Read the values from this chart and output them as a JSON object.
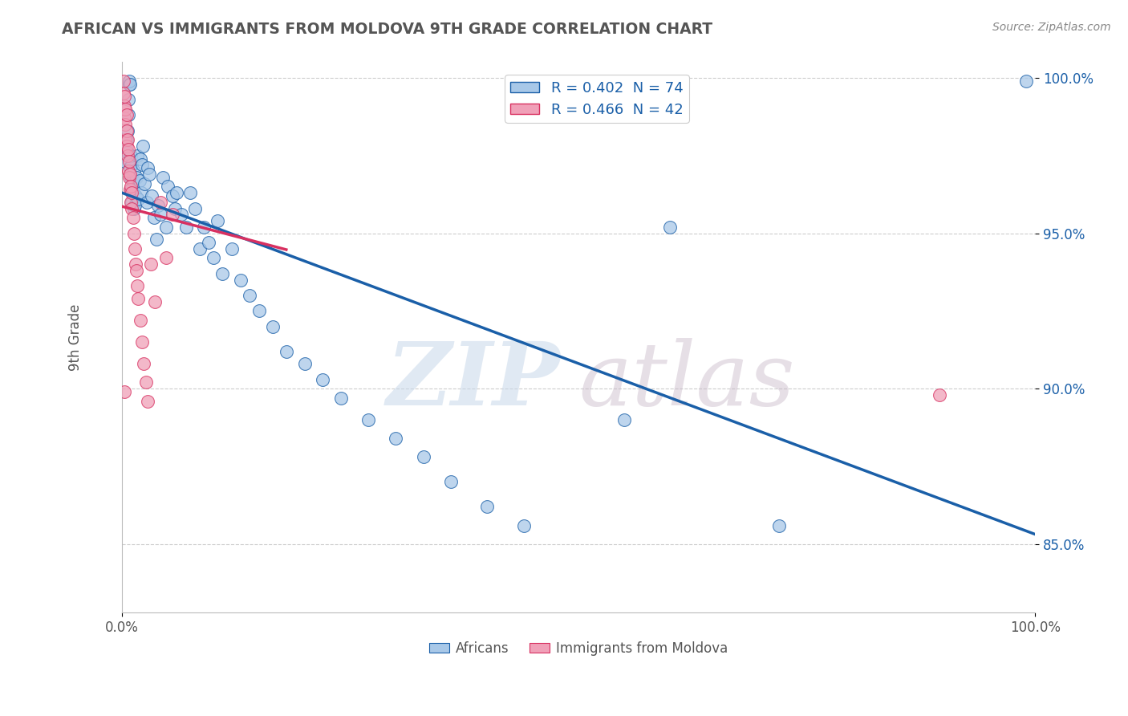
{
  "title": "AFRICAN VS IMMIGRANTS FROM MOLDOVA 9TH GRADE CORRELATION CHART",
  "source": "Source: ZipAtlas.com",
  "ylabel": "9th Grade",
  "xlim": [
    0.0,
    1.0
  ],
  "ylim": [
    0.828,
    1.005
  ],
  "yticks": [
    0.85,
    0.9,
    0.95,
    1.0
  ],
  "ytick_labels": [
    "85.0%",
    "90.0%",
    "95.0%",
    "100.0%"
  ],
  "xtick_labels": [
    "0.0%",
    "100.0%"
  ],
  "blue_color": "#a8c8e8",
  "pink_color": "#f0a0b8",
  "line_blue": "#1a5fa8",
  "line_pink": "#d83060",
  "africans_x": [
    0.003,
    0.004,
    0.005,
    0.006,
    0.006,
    0.007,
    0.007,
    0.008,
    0.008,
    0.009,
    0.009,
    0.01,
    0.01,
    0.01,
    0.011,
    0.011,
    0.012,
    0.012,
    0.013,
    0.013,
    0.014,
    0.015,
    0.016,
    0.017,
    0.018,
    0.019,
    0.02,
    0.021,
    0.022,
    0.023,
    0.025,
    0.027,
    0.028,
    0.03,
    0.033,
    0.035,
    0.038,
    0.04,
    0.042,
    0.045,
    0.048,
    0.05,
    0.055,
    0.058,
    0.06,
    0.065,
    0.07,
    0.075,
    0.08,
    0.085,
    0.09,
    0.095,
    0.1,
    0.105,
    0.11,
    0.12,
    0.13,
    0.14,
    0.15,
    0.165,
    0.18,
    0.2,
    0.22,
    0.24,
    0.27,
    0.3,
    0.33,
    0.36,
    0.4,
    0.44,
    0.55,
    0.6,
    0.72,
    0.99
  ],
  "africans_y": [
    0.973,
    0.978,
    0.98,
    0.983,
    0.976,
    0.988,
    0.993,
    0.998,
    0.999,
    0.998,
    0.971,
    0.968,
    0.964,
    0.975,
    0.96,
    0.972,
    0.963,
    0.967,
    0.958,
    0.97,
    0.959,
    0.962,
    0.968,
    0.975,
    0.961,
    0.967,
    0.974,
    0.963,
    0.972,
    0.978,
    0.966,
    0.96,
    0.971,
    0.969,
    0.962,
    0.955,
    0.948,
    0.959,
    0.956,
    0.968,
    0.952,
    0.965,
    0.962,
    0.958,
    0.963,
    0.956,
    0.952,
    0.963,
    0.958,
    0.945,
    0.952,
    0.947,
    0.942,
    0.954,
    0.937,
    0.945,
    0.935,
    0.93,
    0.925,
    0.92,
    0.912,
    0.908,
    0.903,
    0.897,
    0.89,
    0.884,
    0.878,
    0.87,
    0.862,
    0.856,
    0.89,
    0.952,
    0.856,
    0.999
  ],
  "moldova_x": [
    0.002,
    0.002,
    0.003,
    0.003,
    0.003,
    0.004,
    0.004,
    0.004,
    0.005,
    0.005,
    0.005,
    0.006,
    0.006,
    0.007,
    0.007,
    0.008,
    0.008,
    0.009,
    0.009,
    0.01,
    0.01,
    0.011,
    0.011,
    0.012,
    0.013,
    0.014,
    0.015,
    0.016,
    0.017,
    0.018,
    0.02,
    0.022,
    0.024,
    0.026,
    0.028,
    0.032,
    0.036,
    0.042,
    0.048,
    0.055,
    0.003,
    0.895
  ],
  "moldova_y": [
    0.999,
    0.995,
    0.991,
    0.987,
    0.994,
    0.985,
    0.98,
    0.99,
    0.978,
    0.983,
    0.988,
    0.975,
    0.98,
    0.97,
    0.977,
    0.968,
    0.973,
    0.964,
    0.969,
    0.96,
    0.965,
    0.958,
    0.963,
    0.955,
    0.95,
    0.945,
    0.94,
    0.938,
    0.933,
    0.929,
    0.922,
    0.915,
    0.908,
    0.902,
    0.896,
    0.94,
    0.928,
    0.96,
    0.942,
    0.956,
    0.899,
    0.898
  ]
}
